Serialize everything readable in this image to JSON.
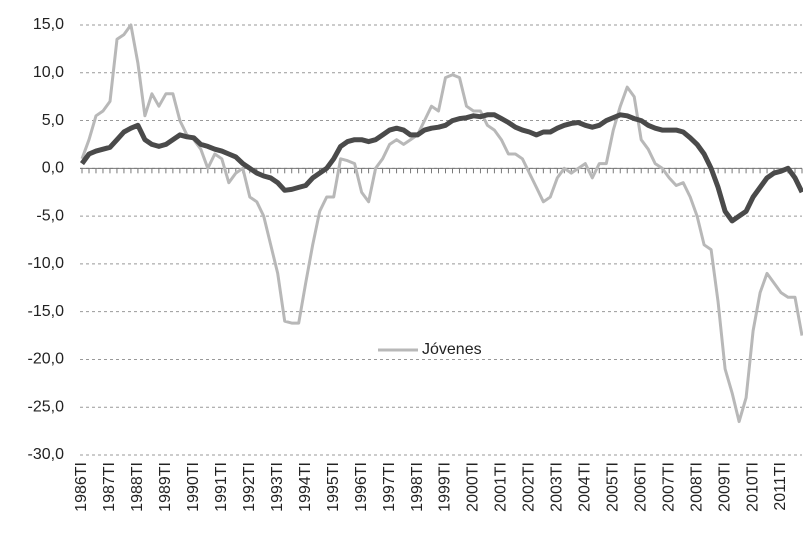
{
  "chart_data": {
    "type": "line",
    "categories": [
      "1986TI",
      null,
      null,
      null,
      "1987TI",
      null,
      null,
      null,
      "1988TI",
      null,
      null,
      null,
      "1989TI",
      null,
      null,
      null,
      "1990TI",
      null,
      null,
      null,
      "1991TI",
      null,
      null,
      null,
      "1992TI",
      null,
      null,
      null,
      "1993TI",
      null,
      null,
      null,
      "1994TI",
      null,
      null,
      null,
      "1995TI",
      null,
      null,
      null,
      "1996TI",
      null,
      null,
      null,
      "1997TI",
      null,
      null,
      null,
      "1998TI",
      null,
      null,
      null,
      "1999TI",
      null,
      null,
      null,
      "2000TI",
      null,
      null,
      null,
      "2001TI",
      null,
      null,
      null,
      "2002TI",
      null,
      null,
      null,
      "2003TI",
      null,
      null,
      null,
      "2004TI",
      null,
      null,
      null,
      "2005TI",
      null,
      null,
      null,
      "2006TI",
      null,
      null,
      null,
      "2007TI",
      null,
      null,
      null,
      "2008TI",
      null,
      null,
      null,
      "2009TI",
      null,
      null,
      null,
      "2010TI",
      null,
      null,
      null,
      "2011TI",
      null,
      null,
      null
    ],
    "series": [
      {
        "name": "Jóvenes",
        "color": "#b8b8b8",
        "values": [
          1,
          3,
          5.5,
          6,
          7,
          13.5,
          14,
          15,
          11,
          5.5,
          7.8,
          6.5,
          7.8,
          7.8,
          5,
          3.5,
          3,
          2,
          0,
          1.5,
          1,
          -1.5,
          -0.5,
          0,
          -3,
          -3.5,
          -5,
          -8,
          -11,
          -16,
          -16.2,
          -16.2,
          -12,
          -8,
          -4.5,
          -3,
          -3,
          1,
          0.8,
          0.5,
          -2.5,
          -3.5,
          0,
          1,
          2.5,
          3,
          2.5,
          3,
          3.5,
          5,
          6.5,
          6,
          9.5,
          9.8,
          9.5,
          6.5,
          6,
          6,
          4.5,
          4,
          3,
          1.5,
          1.5,
          1,
          -0.5,
          -2,
          -3.5,
          -3,
          -1,
          0,
          -0.5,
          0,
          0.5,
          -1,
          0.5,
          0.5,
          4,
          6.5,
          8.5,
          7.5,
          3,
          2,
          0.5,
          0,
          -1,
          -1.8,
          -1.5,
          -3,
          -5,
          -8,
          -8.5,
          -14,
          -21,
          -23.5,
          -26.5,
          -24,
          -17,
          -13,
          -11,
          -12,
          -13,
          -13.5,
          -13.5,
          -17.5
        ]
      },
      {
        "color": "#4a4a4a",
        "values": [
          0.5,
          1.5,
          1.8,
          2,
          2.2,
          3,
          3.8,
          4.2,
          4.5,
          3,
          2.5,
          2.3,
          2.5,
          3,
          3.5,
          3.3,
          3.2,
          2.5,
          2.3,
          2,
          1.8,
          1.5,
          1.2,
          0.5,
          0,
          -0.5,
          -0.8,
          -1,
          -1.5,
          -2.3,
          -2.2,
          -2,
          -1.8,
          -1,
          -0.5,
          0,
          1,
          2.3,
          2.8,
          3,
          3,
          2.8,
          3,
          3.5,
          4,
          4.2,
          4,
          3.5,
          3.5,
          4,
          4.2,
          4.3,
          4.5,
          5,
          5.2,
          5.3,
          5.5,
          5.4,
          5.6,
          5.6,
          5.2,
          4.8,
          4.3,
          4,
          3.8,
          3.5,
          3.8,
          3.8,
          4.2,
          4.5,
          4.7,
          4.8,
          4.5,
          4.3,
          4.5,
          5,
          5.3,
          5.6,
          5.5,
          5.2,
          5,
          4.5,
          4.2,
          4,
          4,
          4,
          3.8,
          3.2,
          2.5,
          1.5,
          0,
          -2,
          -4.5,
          -5.5,
          -5,
          -4.5,
          -3,
          -2,
          -1,
          -0.5,
          -0.3,
          0,
          -1,
          -2.5
        ]
      }
    ],
    "ylim": [
      -30,
      15
    ],
    "yticks": [
      {
        "value": -30,
        "label": "-30,0"
      },
      {
        "value": -25,
        "label": "-25,0"
      },
      {
        "value": -20,
        "label": "-20,0"
      },
      {
        "value": -15,
        "label": "-15,0"
      },
      {
        "value": -10,
        "label": "-10,0"
      },
      {
        "value": -5,
        "label": "-5,0"
      },
      {
        "value": 0,
        "label": "0,0"
      },
      {
        "value": 5,
        "label": "5,0"
      },
      {
        "value": 10,
        "label": "10,0"
      },
      {
        "value": 15,
        "label": "15,0"
      }
    ],
    "grid": true,
    "legend": "center"
  }
}
